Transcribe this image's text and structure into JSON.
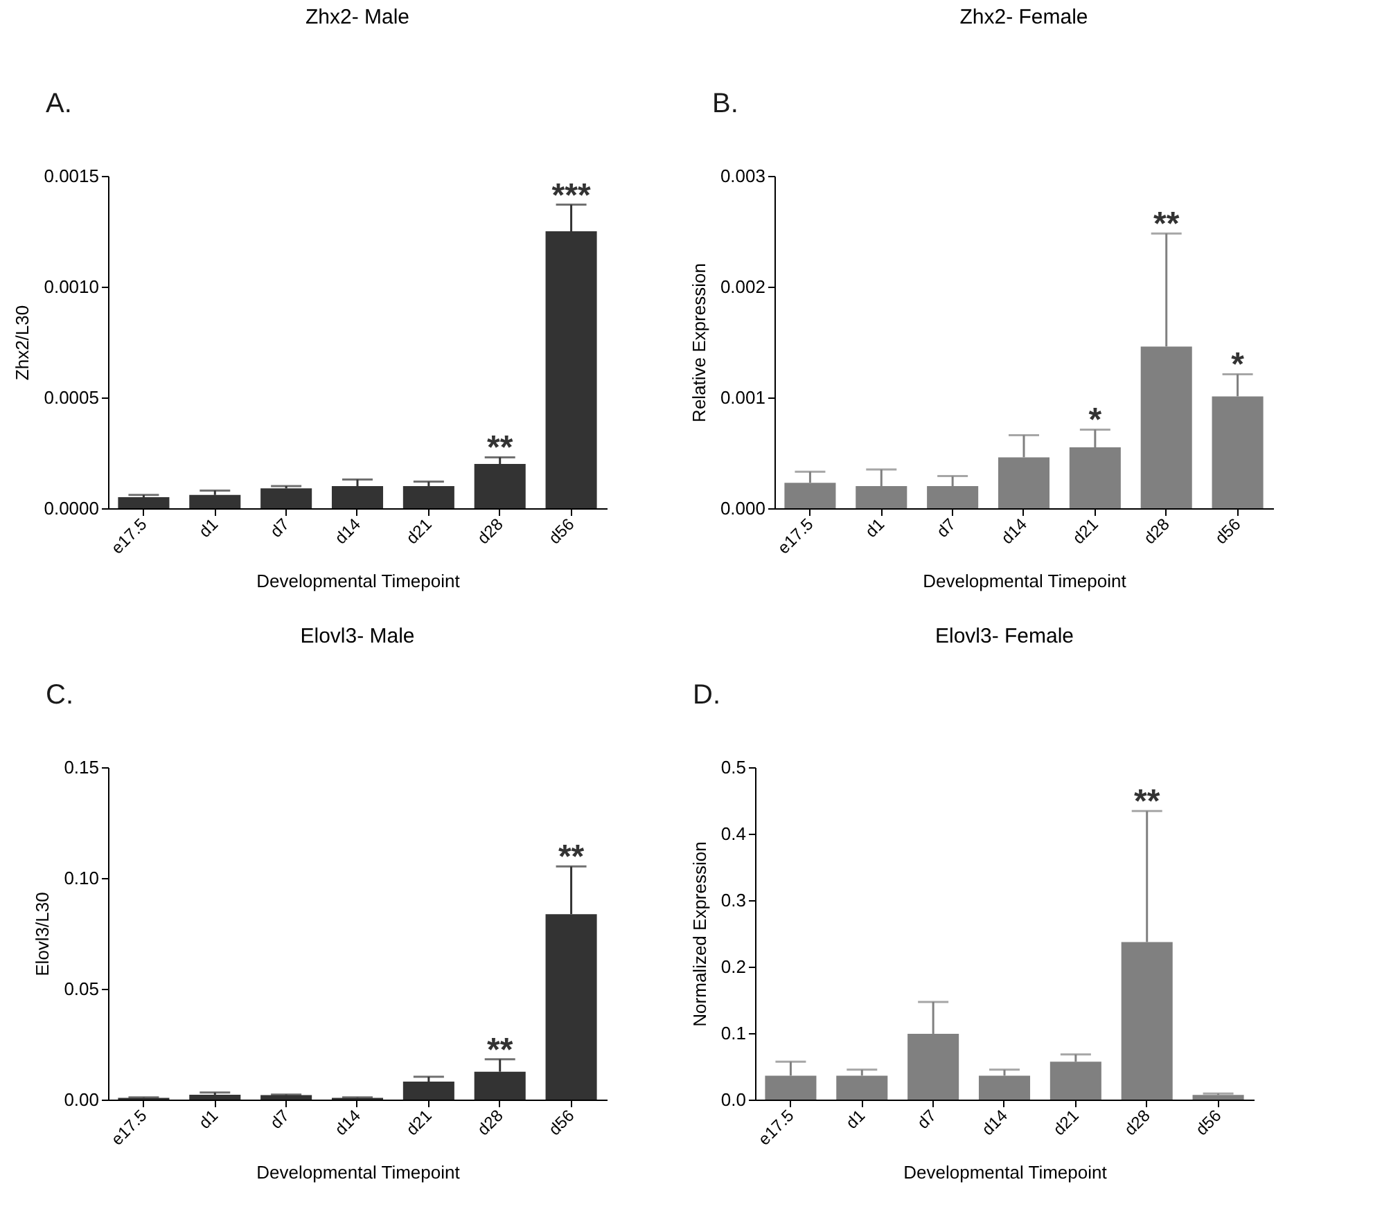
{
  "chart_data": [
    {
      "type": "bar",
      "title": "Zhx2- Male",
      "xlabel": "Developmental Timepoint",
      "ylabel": "Zhx2/L30",
      "annotations": [
        "A.",
        {
          "text": "**",
          "x": "d28",
          "y": 0.00023
        },
        {
          "text": "***",
          "x": "d56",
          "y": 0.00137
        }
      ],
      "categories": [
        "e17.5",
        "d1",
        "d7",
        "d14",
        "d21",
        "d28",
        "d56"
      ],
      "series": [
        {
          "color": "#333333",
          "values": [
            5e-05,
            6e-05,
            9e-05,
            0.0001,
            0.0001,
            0.0002,
            0.00125
          ],
          "errors": [
            1e-05,
            2e-05,
            1e-05,
            3e-05,
            2e-05,
            3e-05,
            0.00012
          ]
        }
      ],
      "ylim": [
        0,
        0.0015
      ],
      "yticks": [
        {
          "value": 0,
          "label": "0.0000"
        },
        {
          "value": 0.0005,
          "label": "0.0005"
        },
        {
          "value": 0.001,
          "label": "0.0010"
        },
        {
          "value": 0.0015,
          "label": "0.0015"
        }
      ],
      "grid": false
    },
    {
      "type": "bar",
      "title": "Zhx2- Female",
      "xlabel": "Developmental Timepoint",
      "ylabel": "Relative Expression",
      "annotations": [
        "B.",
        {
          "text": "*",
          "x": "d21",
          "y": 0.00071
        },
        {
          "text": "**",
          "x": "d28",
          "y": 0.00248
        },
        {
          "text": "*",
          "x": "d56",
          "y": 0.00121
        }
      ],
      "categories": [
        "e17.5",
        "d1",
        "d7",
        "d14",
        "d21",
        "d28",
        "d56"
      ],
      "series": [
        {
          "color": "#808080",
          "values": [
            0.00023,
            0.0002,
            0.0002,
            0.00046,
            0.00055,
            0.00146,
            0.00101
          ],
          "errors": [
            0.0001,
            0.00015,
            9e-05,
            0.0002,
            0.00016,
            0.00102,
            0.0002
          ]
        }
      ],
      "ylim": [
        0,
        0.003
      ],
      "yticks": [
        {
          "value": 0,
          "label": "0.000"
        },
        {
          "value": 0.001,
          "label": "0.001"
        },
        {
          "value": 0.002,
          "label": "0.002"
        },
        {
          "value": 0.003,
          "label": "0.003"
        }
      ],
      "grid": false
    },
    {
      "type": "bar",
      "title": "Elovl3- Male",
      "xlabel": "Developmental Timepoint",
      "ylabel": "Elovl3/L30",
      "annotations": [
        "C.",
        {
          "text": "**",
          "x": "d28",
          "y": 0.0182
        },
        {
          "text": "**",
          "x": "d56",
          "y": 0.1052
        }
      ],
      "categories": [
        "e17.5",
        "d1",
        "d7",
        "d14",
        "d21",
        "d28",
        "d56"
      ],
      "series": [
        {
          "color": "#333333",
          "values": [
            0.0008,
            0.0022,
            0.002,
            0.0008,
            0.0081,
            0.0126,
            0.0837
          ],
          "errors": [
            0.0002,
            0.001,
            0.0003,
            0.0002,
            0.0022,
            0.0056,
            0.0215
          ]
        }
      ],
      "ylim": [
        0,
        0.15
      ],
      "yticks": [
        {
          "value": 0,
          "label": "0.00"
        },
        {
          "value": 0.05,
          "label": "0.05"
        },
        {
          "value": 0.1,
          "label": "0.10"
        },
        {
          "value": 0.15,
          "label": "0.15"
        }
      ],
      "grid": false
    },
    {
      "type": "bar",
      "title": "Elovl3-  Female",
      "xlabel": "Developmental Timepoint",
      "ylabel": "Normalized  Expression",
      "annotations": [
        "D.",
        {
          "text": "**",
          "x": "d28",
          "y": 0.434
        }
      ],
      "categories": [
        "e17.5",
        "d1",
        "d7",
        "d14",
        "d21",
        "d28",
        "d56"
      ],
      "series": [
        {
          "color": "#808080",
          "values": [
            0.036,
            0.036,
            0.099,
            0.036,
            0.057,
            0.237,
            0.007
          ],
          "errors": [
            0.021,
            0.009,
            0.048,
            0.009,
            0.011,
            0.197,
            0.002
          ]
        }
      ],
      "ylim": [
        0,
        0.5
      ],
      "yticks": [
        {
          "value": 0,
          "label": "0.0"
        },
        {
          "value": 0.1,
          "label": "0.1"
        },
        {
          "value": 0.2,
          "label": "0.2"
        },
        {
          "value": 0.3,
          "label": "0.3"
        },
        {
          "value": 0.4,
          "label": "0.4"
        },
        {
          "value": 0.5,
          "label": "0.5"
        }
      ],
      "grid": false
    }
  ]
}
